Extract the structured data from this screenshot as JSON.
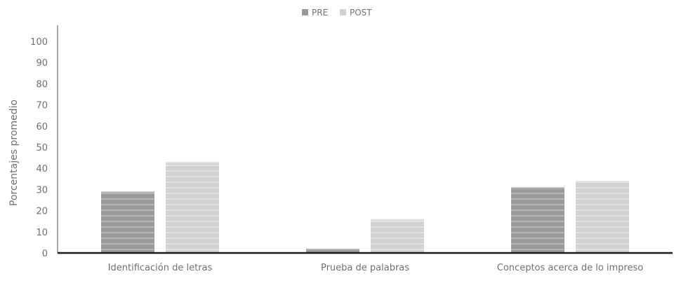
{
  "chart_data": {
    "type": "bar",
    "categories": [
      "Identificación de letras",
      "Prueba de palabras",
      "Conceptos acerca de lo impreso"
    ],
    "series": [
      {
        "name": "PRE",
        "values": [
          29,
          2,
          31
        ],
        "color": "#9a9a9a",
        "stripe_color": "#b4b4b4"
      },
      {
        "name": "POST",
        "values": [
          43,
          16,
          34
        ],
        "color": "#d2d2d2",
        "stripe_color": "#e2e2e2"
      }
    ],
    "title": "",
    "xlabel": "",
    "ylabel": "Porcentajes promedio",
    "ylim": [
      0,
      100
    ],
    "yticks": [
      0,
      10,
      20,
      30,
      40,
      50,
      60,
      70,
      80,
      90,
      100
    ],
    "grid": false,
    "legend_position": "top-center",
    "axis_color": "#1a1a1a"
  }
}
